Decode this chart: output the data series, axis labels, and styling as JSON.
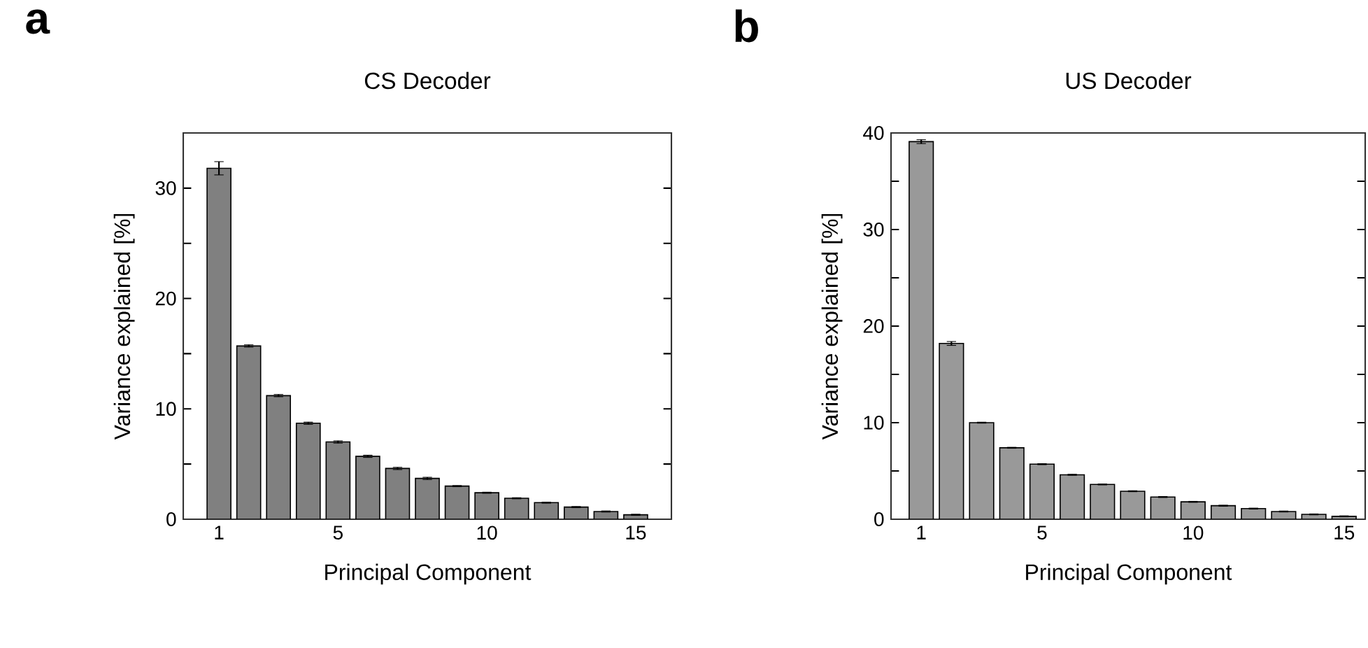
{
  "chart_data": [
    {
      "type": "bar",
      "title": "CS Decoder",
      "xlabel": "Principal Component",
      "ylabel": "Variance explained [%]",
      "annotations": [
        "a"
      ],
      "x": [
        1,
        2,
        3,
        4,
        5,
        6,
        7,
        8,
        9,
        10,
        11,
        12,
        13,
        14,
        15
      ],
      "values": [
        31.8,
        15.7,
        11.2,
        8.7,
        7.0,
        5.7,
        4.6,
        3.7,
        3.0,
        2.4,
        1.9,
        1.5,
        1.1,
        0.7,
        0.4
      ],
      "errors": [
        0.6,
        0.1,
        0.1,
        0.1,
        0.1,
        0.1,
        0.1,
        0.1,
        0.05,
        0.05,
        0.05,
        0.05,
        0.05,
        0.05,
        0.05
      ],
      "color": "#808080",
      "xlim": [
        -0.2,
        16.2
      ],
      "ylim": [
        0,
        35
      ],
      "xticks": [
        1,
        5,
        10,
        15
      ],
      "yticks": [
        0,
        {
          "value": 5,
          "label": null
        },
        10,
        {
          "value": 15,
          "label": null
        },
        20,
        {
          "value": 25,
          "label": null
        },
        30
      ],
      "grid": false
    },
    {
      "type": "bar",
      "title": "US Decoder",
      "xlabel": "Principal Component",
      "ylabel": "Variance explained [%]",
      "annotations": [
        "b"
      ],
      "x": [
        1,
        2,
        3,
        4,
        5,
        6,
        7,
        8,
        9,
        10,
        11,
        12,
        13,
        14,
        15
      ],
      "values": [
        39.1,
        18.2,
        10.0,
        7.4,
        5.7,
        4.6,
        3.6,
        2.9,
        2.3,
        1.8,
        1.4,
        1.1,
        0.8,
        0.5,
        0.3
      ],
      "errors": [
        0.2,
        0.2,
        0.05,
        0.05,
        0.05,
        0.05,
        0.05,
        0.05,
        0.05,
        0.05,
        0.05,
        0.05,
        0.05,
        0.05,
        0.05
      ],
      "color": "#999999",
      "xlim": [
        0,
        15.7
      ],
      "ylim": [
        0,
        40
      ],
      "xticks": [
        1,
        5,
        10,
        15
      ],
      "yticks": [
        0,
        {
          "value": 5,
          "label": null
        },
        10,
        {
          "value": 15,
          "label": null
        },
        20,
        {
          "value": 25,
          "label": null
        },
        30,
        {
          "value": 35,
          "label": null
        },
        40
      ],
      "grid": false
    }
  ]
}
